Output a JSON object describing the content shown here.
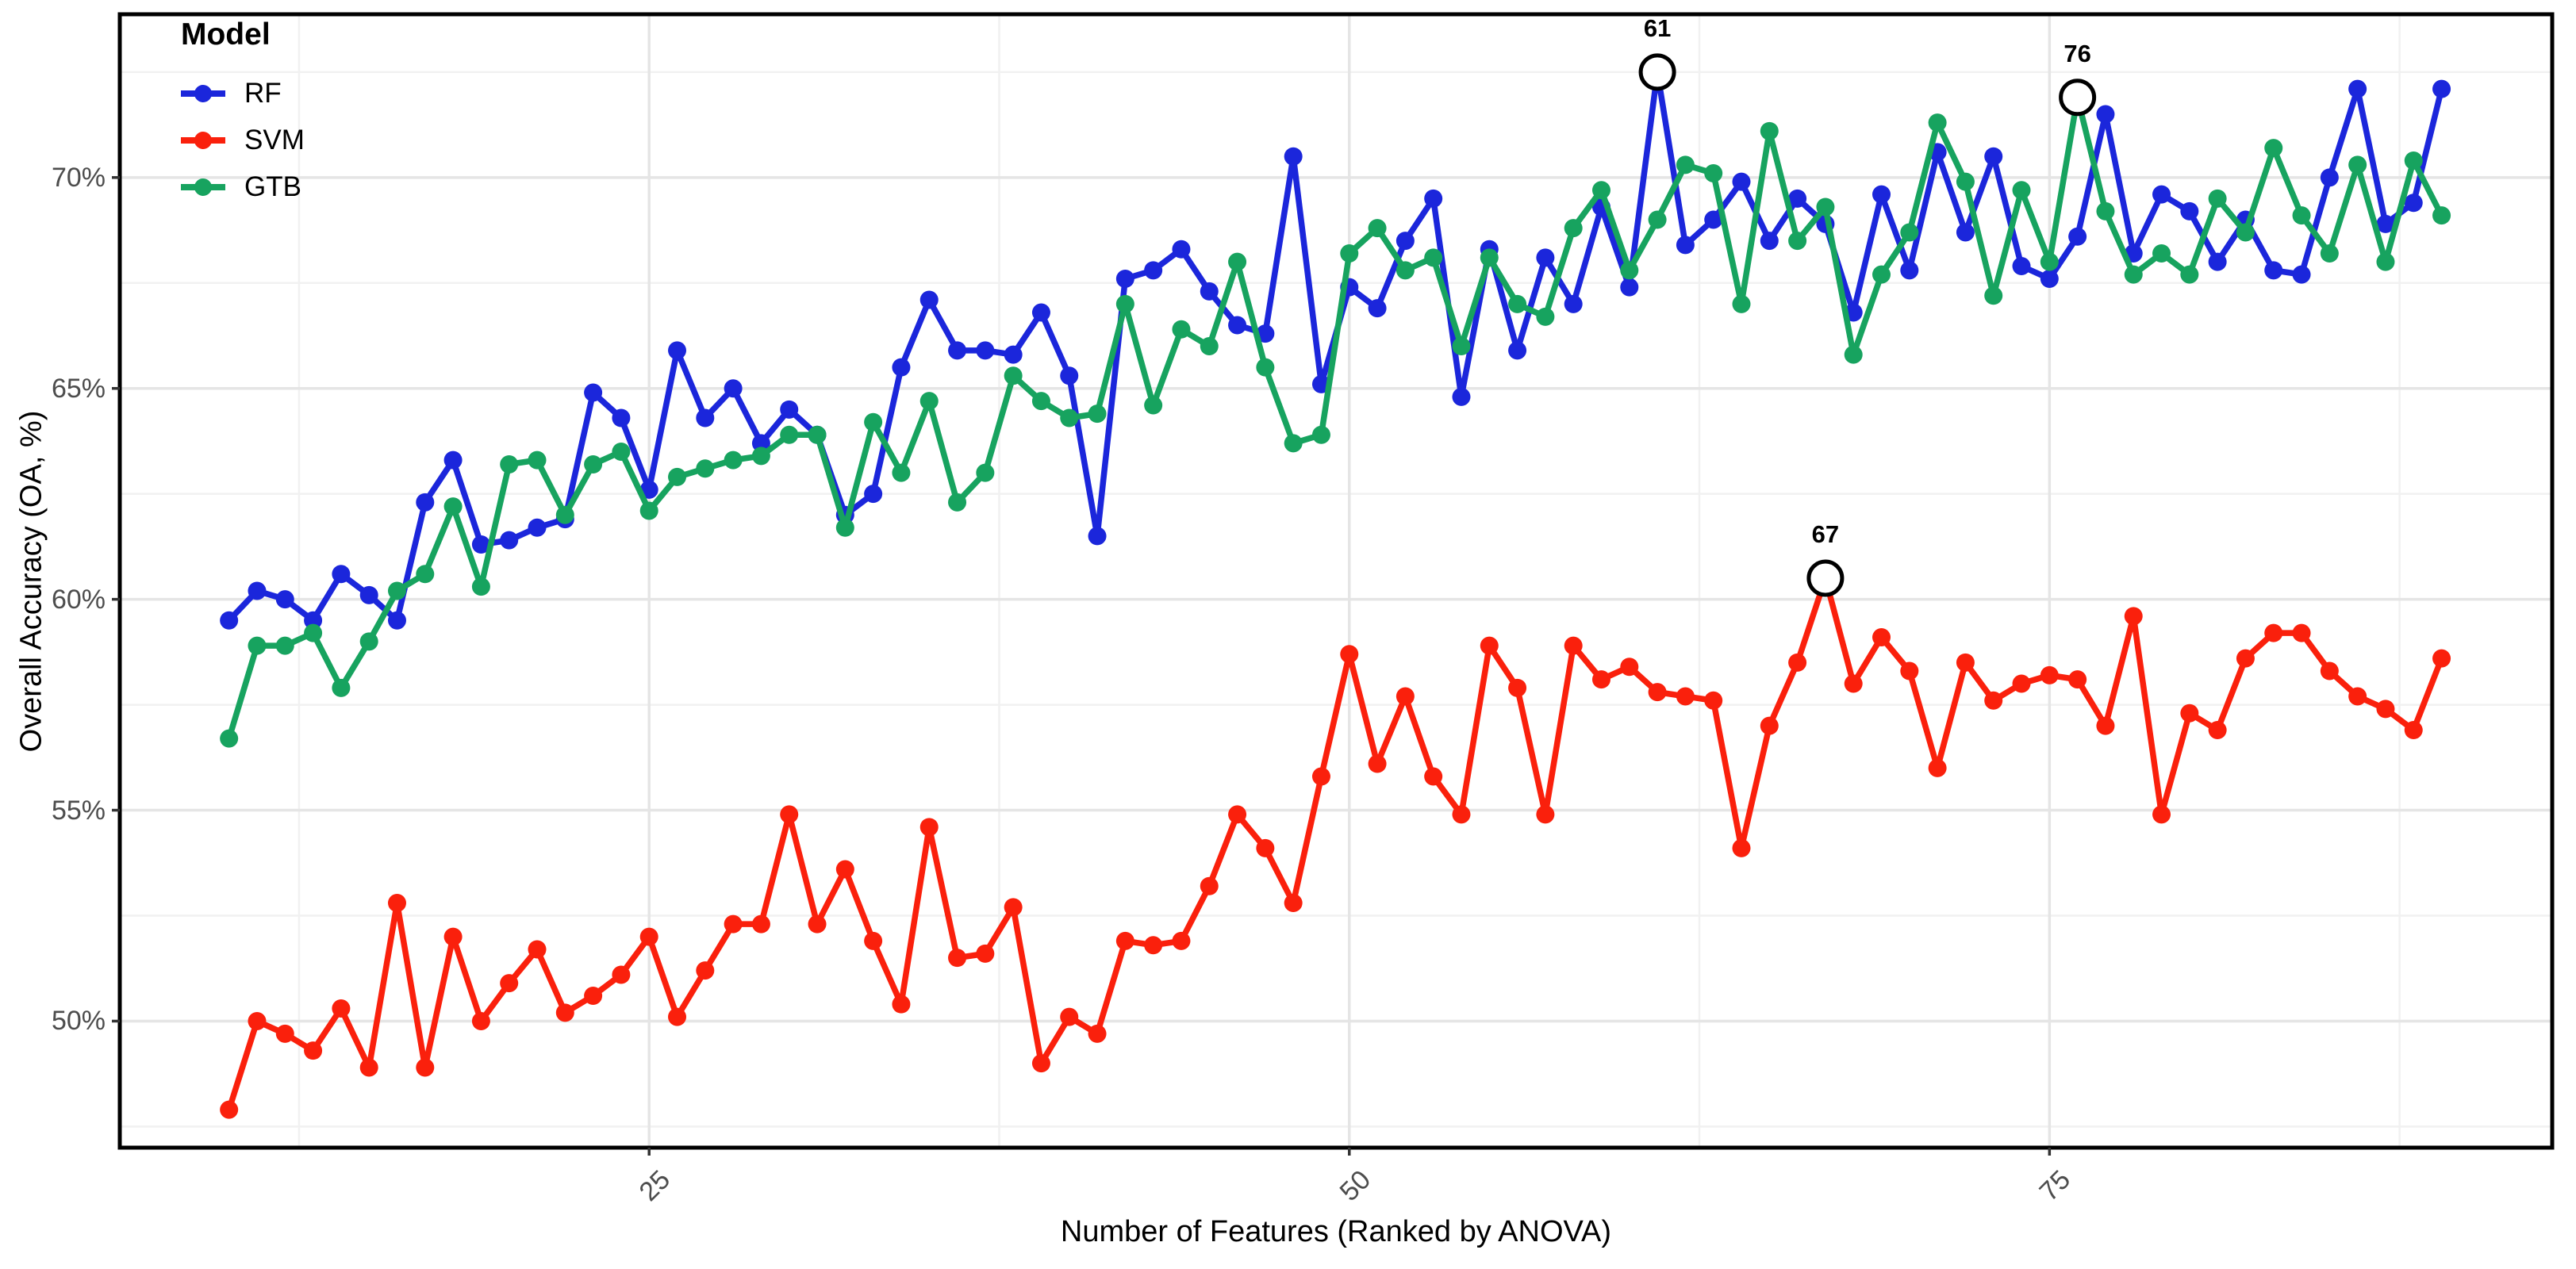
{
  "legend": {
    "title": "Model",
    "items": [
      {
        "label": "RF",
        "color": "#1B26DB"
      },
      {
        "label": "SVM",
        "color": "#FA200C"
      },
      {
        "label": "GTB",
        "color": "#17A35F"
      }
    ]
  },
  "x_axis": {
    "title": "Number of Features (Ranked by ANOVA)",
    "tick_values": [
      25,
      50,
      75
    ],
    "tick_labels": [
      "25",
      "50",
      "75"
    ],
    "minor_values": [
      12.5,
      37.5,
      62.5,
      87.5
    ],
    "range": [
      6.1,
      92.95
    ]
  },
  "y_axis": {
    "title": "Overall Accuracy (OA, %)",
    "tick_values": [
      70,
      65,
      60,
      55,
      50
    ],
    "tick_labels": [
      "70%",
      "65%",
      "60%",
      "55%",
      "50%"
    ],
    "minor_values": [
      72.5,
      67.5,
      62.5,
      57.5,
      52.5,
      47.5
    ],
    "range": [
      47.0,
      73.87
    ]
  },
  "chart_data": {
    "type": "line",
    "title": "",
    "xlabel": "Number of Features (Ranked by ANOVA)",
    "ylabel": "Overall Accuracy (OA, %)",
    "legend_position": "top-left-inside",
    "grid": "major-and-minor",
    "xlim": [
      6.1,
      92.95
    ],
    "ylim": [
      47.0,
      73.87
    ],
    "x": [
      10,
      11,
      12,
      13,
      14,
      15,
      16,
      17,
      18,
      19,
      20,
      21,
      22,
      23,
      24,
      25,
      26,
      27,
      28,
      29,
      30,
      31,
      32,
      33,
      34,
      35,
      36,
      37,
      38,
      39,
      40,
      41,
      42,
      43,
      44,
      45,
      46,
      47,
      48,
      49,
      50,
      51,
      52,
      53,
      54,
      55,
      56,
      57,
      58,
      59,
      60,
      61,
      62,
      63,
      64,
      65,
      66,
      67,
      68,
      69,
      70,
      71,
      72,
      73,
      74,
      75,
      76,
      77,
      78,
      79,
      80,
      81,
      82,
      83,
      84,
      85,
      86,
      87,
      88,
      89
    ],
    "series": [
      {
        "name": "RF",
        "color": "#1B26DB",
        "values": [
          59.5,
          60.2,
          60.0,
          59.5,
          60.6,
          60.1,
          59.5,
          62.3,
          63.3,
          61.3,
          61.4,
          61.7,
          61.9,
          64.9,
          64.3,
          62.6,
          65.9,
          64.3,
          65.0,
          63.7,
          64.5,
          63.9,
          62.0,
          62.5,
          65.5,
          67.1,
          65.9,
          65.9,
          65.8,
          66.8,
          65.3,
          61.5,
          67.6,
          67.8,
          68.3,
          67.3,
          66.5,
          66.3,
          70.5,
          65.1,
          67.4,
          66.9,
          68.5,
          69.5,
          64.8,
          68.3,
          65.9,
          68.1,
          67.0,
          69.3,
          67.4,
          72.5,
          68.4,
          69.0,
          69.9,
          68.5,
          69.5,
          68.9,
          66.8,
          69.6,
          67.8,
          70.6,
          68.7,
          70.5,
          67.9,
          67.6,
          68.6,
          71.5,
          68.2,
          69.6,
          69.2,
          68.0,
          69.0,
          67.8,
          67.7,
          70.0,
          72.1,
          68.9,
          69.4,
          72.1
        ]
      },
      {
        "name": "SVM",
        "color": "#FA200C",
        "values": [
          47.9,
          50.0,
          49.7,
          49.3,
          50.3,
          48.9,
          52.8,
          48.9,
          52.0,
          50.0,
          50.9,
          51.7,
          50.2,
          50.6,
          51.1,
          52.0,
          50.1,
          51.2,
          52.3,
          52.3,
          54.9,
          52.3,
          53.6,
          51.9,
          50.4,
          54.6,
          51.5,
          51.6,
          52.7,
          49.0,
          50.1,
          49.7,
          51.9,
          51.8,
          51.9,
          53.2,
          54.9,
          54.1,
          52.8,
          55.8,
          58.7,
          56.1,
          57.7,
          55.8,
          54.9,
          58.9,
          57.9,
          54.9,
          58.9,
          58.1,
          58.4,
          57.8,
          57.7,
          57.6,
          54.1,
          57.0,
          58.5,
          60.5,
          58.0,
          59.1,
          58.3,
          56.0,
          58.5,
          57.6,
          58.0,
          58.2,
          58.1,
          57.0,
          59.6,
          54.9,
          57.3,
          56.9,
          58.6,
          59.2,
          59.2,
          58.3,
          57.7,
          57.4,
          56.9,
          58.6
        ]
      },
      {
        "name": "GTB",
        "color": "#17A35F",
        "values": [
          56.7,
          58.9,
          58.9,
          59.2,
          57.9,
          59.0,
          60.2,
          60.6,
          62.2,
          60.3,
          63.2,
          63.3,
          62.0,
          63.2,
          63.5,
          62.1,
          62.9,
          63.1,
          63.3,
          63.4,
          63.9,
          63.9,
          61.7,
          64.2,
          63.0,
          64.7,
          62.3,
          63.0,
          65.3,
          64.7,
          64.3,
          64.4,
          67.0,
          64.6,
          66.4,
          66.0,
          68.0,
          65.5,
          63.7,
          63.9,
          68.2,
          68.8,
          67.8,
          68.1,
          66.0,
          68.1,
          67.0,
          66.7,
          68.8,
          69.7,
          67.8,
          69.0,
          70.3,
          70.1,
          67.0,
          71.1,
          68.5,
          69.3,
          65.8,
          67.7,
          68.7,
          71.3,
          69.9,
          67.2,
          69.7,
          68.0,
          71.9,
          69.2,
          67.7,
          68.2,
          67.7,
          69.5,
          68.7,
          70.7,
          69.1,
          68.2,
          70.3,
          68.0,
          70.4,
          69.1
        ]
      }
    ],
    "annotations": [
      {
        "label": "61",
        "series": "RF",
        "x": 61,
        "y": 72.5
      },
      {
        "label": "67",
        "series": "SVM",
        "x": 67,
        "y": 60.5
      },
      {
        "label": "76",
        "series": "GTB",
        "x": 76,
        "y": 71.9
      }
    ]
  }
}
